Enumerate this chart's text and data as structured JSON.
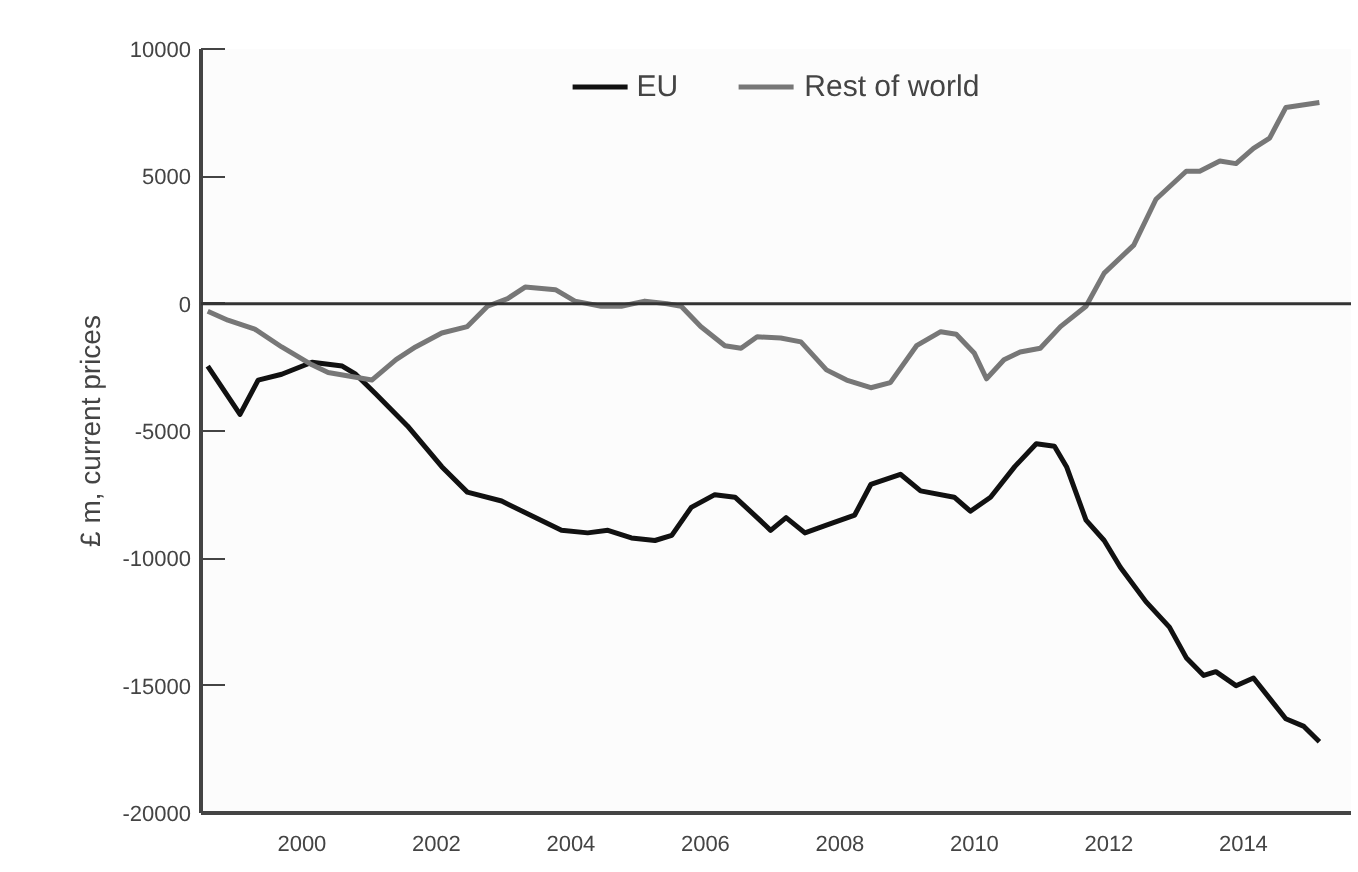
{
  "chart_data": {
    "type": "line",
    "ylabel": "£ m, current prices",
    "xlim": [
      1998.5,
      2015.6
    ],
    "xticks": [
      2000,
      2002,
      2004,
      2006,
      2008,
      2010,
      2012,
      2014
    ],
    "ylim": [
      -20000,
      10000
    ],
    "yticks": [
      -20000,
      -15000,
      -10000,
      -5000,
      0,
      5000,
      10000
    ],
    "grid": false,
    "legend": "top",
    "line_style": "solid",
    "ref_lines": [
      {
        "axis": "y",
        "value": 0,
        "color": "#333333"
      }
    ],
    "series": [
      {
        "name": "EU",
        "color": "#111111",
        "x": [
          1998.6,
          1999.08,
          1999.35,
          1999.7,
          2000.15,
          2000.6,
          2000.8,
          2001.1,
          2001.57,
          2002.08,
          2002.46,
          2002.97,
          2003.47,
          2003.86,
          2004.25,
          2004.55,
          2004.9,
          2005.25,
          2005.5,
          2005.79,
          2006.14,
          2006.44,
          2006.73,
          2006.97,
          2007.2,
          2007.48,
          2007.8,
          2008.22,
          2008.46,
          2008.9,
          2009.2,
          2009.7,
          2009.94,
          2010.24,
          2010.6,
          2010.92,
          2011.19,
          2011.37,
          2011.66,
          2011.93,
          2012.17,
          2012.55,
          2012.9,
          2013.15,
          2013.41,
          2013.59,
          2013.89,
          2014.15,
          2014.39,
          2014.63,
          2014.9,
          2015.13
        ],
        "values": [
          -2450,
          -4350,
          -3000,
          -2770,
          -2300,
          -2450,
          -2770,
          -3550,
          -4800,
          -6400,
          -7400,
          -7750,
          -8400,
          -8900,
          -9000,
          -8900,
          -9200,
          -9300,
          -9100,
          -8000,
          -7500,
          -7600,
          -8300,
          -8900,
          -8400,
          -9000,
          -8700,
          -8300,
          -7100,
          -6700,
          -7350,
          -7600,
          -8150,
          -7600,
          -6400,
          -5500,
          -5600,
          -6400,
          -8500,
          -9300,
          -10350,
          -11700,
          -12700,
          -13900,
          -14600,
          -14450,
          -15000,
          -14700,
          -15500,
          -16300,
          -16600,
          -17200
        ]
      },
      {
        "name": "Rest of world",
        "color": "#777777",
        "x": [
          1998.6,
          1998.9,
          1999.3,
          1999.7,
          2000.15,
          2000.39,
          2001.04,
          2001.4,
          2001.69,
          2002.08,
          2002.46,
          2002.76,
          2003.06,
          2003.32,
          2003.77,
          2004.06,
          2004.45,
          2004.75,
          2005.1,
          2005.43,
          2005.64,
          2005.93,
          2006.29,
          2006.53,
          2006.77,
          2007.12,
          2007.42,
          2007.8,
          2008.1,
          2008.46,
          2008.75,
          2009.14,
          2009.5,
          2009.73,
          2010.0,
          2010.18,
          2010.44,
          2010.68,
          2010.98,
          2011.28,
          2011.66,
          2011.93,
          2012.37,
          2012.7,
          2013.15,
          2013.35,
          2013.65,
          2013.89,
          2014.15,
          2014.39,
          2014.63,
          2015.13
        ],
        "values": [
          -300,
          -650,
          -1000,
          -1700,
          -2400,
          -2700,
          -3000,
          -2200,
          -1700,
          -1150,
          -900,
          -100,
          200,
          650,
          550,
          100,
          -100,
          -100,
          100,
          0,
          -100,
          -900,
          -1650,
          -1750,
          -1300,
          -1350,
          -1500,
          -2600,
          -3000,
          -3300,
          -3100,
          -1650,
          -1100,
          -1200,
          -1950,
          -2950,
          -2200,
          -1900,
          -1750,
          -900,
          -100,
          1200,
          2300,
          4100,
          5200,
          5200,
          5600,
          5500,
          6100,
          6500,
          7700,
          7900
        ]
      }
    ]
  }
}
